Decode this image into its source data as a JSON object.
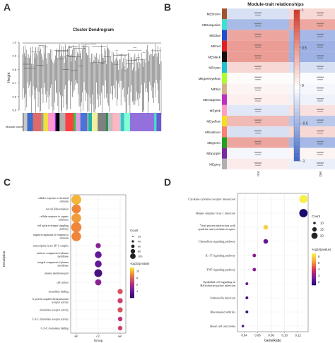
{
  "panels": {
    "a": "A",
    "b": "B",
    "c": "C",
    "d": "D"
  },
  "chart_data": [
    {
      "type": "dendrogram",
      "title": "Cluster Dendrogram",
      "ylabel": "Height",
      "yticks": [
        "1.0",
        "0.9",
        "0.8",
        "0.7",
        "0.6",
        "0.5"
      ],
      "ylim": [
        0.45,
        1.0
      ],
      "color_bar_label": "Module colors",
      "module_color_bar": [
        "#7b7b7b",
        "#c8c8c8",
        "#3a6fcf",
        "#e06a6a",
        "#9a9a9a",
        "#f0e040",
        "#ff99cc",
        "#8a2be2",
        "#000000",
        "#b0b0b0",
        "#ff4040",
        "#3cbf3c",
        "#e0a0e0",
        "#4b74d6",
        "#d2b48c",
        "#20b2aa",
        "#f0f0a0",
        "#808080",
        "#2e8b57",
        "#c0c0c0",
        "#ffb6c1",
        "#a0d8f0",
        "#40c0c0",
        "#7fffd4",
        "#9370db",
        "#40e0d0",
        "#6a5acd"
      ]
    },
    {
      "type": "heatmap",
      "title": "Module-trait relationships",
      "columns": [
        "Control",
        "T2DM"
      ],
      "rows": [
        "MEbrown",
        "MEturquoise",
        "MEblue",
        "MEred",
        "MEblack",
        "MEcyan",
        "MEgreenyellow",
        "MEtan",
        "MEmagenta",
        "MEpink",
        "MEyellow",
        "MEsalmon",
        "MEgreen",
        "MEpurple",
        "MEgrey"
      ],
      "row_colors": [
        "#a0522d",
        "#40e0d0",
        "#1f4fd0",
        "#e02020",
        "#111111",
        "#20c0d0",
        "#adff2f",
        "#d2b48c",
        "#c030c0",
        "#ff9ec4",
        "#f0e020",
        "#fa8072",
        "#20a020",
        "#7a2aa0",
        "#b0b0b0"
      ],
      "values": [
        [
          -0.2,
          0.2
        ],
        [
          -0.44,
          0.44
        ],
        [
          0.45,
          -0.45
        ],
        [
          0.5,
          -0.5
        ],
        [
          0.5,
          -0.5
        ],
        [
          0.2,
          -0.2
        ],
        [
          0.02,
          -0.02
        ],
        [
          0.05,
          -0.05
        ],
        [
          0.08,
          -0.08
        ],
        [
          -0.15,
          0.15
        ],
        [
          0.35,
          -0.35
        ],
        [
          -0.2,
          0.2
        ],
        [
          0.45,
          -0.45
        ],
        [
          -0.05,
          0.05
        ],
        [
          0.1,
          -0.1
        ]
      ],
      "scale_ticks": [
        "1",
        "0.5",
        "0",
        "-0.5",
        "-1"
      ],
      "clim": [
        -1,
        1
      ]
    },
    {
      "type": "scatter",
      "ylabel": "Description",
      "xlabel": "Group",
      "categories": [
        "BP",
        "CC",
        "MF"
      ],
      "terms": [
        {
          "label": "cellular response to chemical stimulus",
          "group": "BP",
          "count": 55,
          "log10p": 10
        },
        {
          "label": "fat cell differentiation",
          "group": "BP",
          "count": 45,
          "log10p": 9
        },
        {
          "label": "cellular response to organic substance",
          "group": "BP",
          "count": 50,
          "log10p": 9.5
        },
        {
          "label": "cell surface receptor signaling pathway",
          "group": "BP",
          "count": 60,
          "log10p": 9
        },
        {
          "label": "negative regulation of response to stimulus",
          "group": "BP",
          "count": 50,
          "log10p": 9
        },
        {
          "label": "transcription factor AP-1 complex",
          "group": "CC",
          "count": 8,
          "log10p": 5
        },
        {
          "label": "intrinsic component of plasma membrane",
          "group": "CC",
          "count": 20,
          "log10p": 4
        },
        {
          "label": "integral component of plasma membrane",
          "group": "CC",
          "count": 20,
          "log10p": 4
        },
        {
          "label": "plasma membrane part",
          "group": "CC",
          "count": 30,
          "log10p": 3
        },
        {
          "label": "cell surface",
          "group": "CC",
          "count": 15,
          "log10p": 5
        },
        {
          "label": "chemokine binding",
          "group": "MF",
          "count": 8,
          "log10p": 7.5
        },
        {
          "label": "G protein-coupled chemoattractant receptor activity",
          "group": "MF",
          "count": 8,
          "log10p": 7
        },
        {
          "label": "chemokine receptor activity",
          "group": "MF",
          "count": 8,
          "log10p": 7.5
        },
        {
          "label": "C-X-C chemokine receptor activity",
          "group": "MF",
          "count": 5,
          "log10p": 6.5
        },
        {
          "label": "C-X-C chemokine binding",
          "group": "MF",
          "count": 5,
          "log10p": 7
        }
      ],
      "legend": {
        "size_title": "Count",
        "size_values": [
          20,
          40,
          60,
          80,
          100
        ],
        "color_title": "-log10(p value)",
        "color_ticks": [
          "4",
          "6",
          "8",
          "10"
        ],
        "clim": [
          2,
          11
        ]
      }
    },
    {
      "type": "scatter",
      "xlabel": "GeneRatio",
      "xticks": [
        "0.04",
        "0.06",
        "0.08",
        "0.10",
        "0.12"
      ],
      "xlim": [
        0.03,
        0.135
      ],
      "terms": [
        {
          "label": "Cytokine-cytokine receptor interaction",
          "x": 0.128,
          "count": 23,
          "log10p": 6.5
        },
        {
          "label": "Herpes simplex virus 1 infection",
          "x": 0.128,
          "count": 23,
          "log10p": 1.5
        },
        {
          "label": "Viral protein interaction with cytokine and cytokine receptor",
          "x": 0.072,
          "count": 13,
          "log10p": 6
        },
        {
          "label": "Chemokine signaling pathway",
          "x": 0.072,
          "count": 13,
          "log10p": 2.5
        },
        {
          "label": "IL-17 signaling pathway",
          "x": 0.055,
          "count": 10,
          "log10p": 3
        },
        {
          "label": "TNF signaling pathway",
          "x": 0.055,
          "count": 10,
          "log10p": 3
        },
        {
          "label": "Epithelial cell signaling in Helicobacter pylori infection",
          "x": 0.044,
          "count": 8,
          "log10p": 2.5
        },
        {
          "label": "Salmonella infection",
          "x": 0.044,
          "count": 8,
          "log10p": 2
        },
        {
          "label": "Rheumatoid arthritis",
          "x": 0.044,
          "count": 8,
          "log10p": 2
        },
        {
          "label": "Basal cell carcinoma",
          "x": 0.038,
          "count": 7,
          "log10p": 2
        }
      ],
      "legend": {
        "size_title": "Count",
        "size_values": [
          10,
          15,
          20
        ],
        "color_title": "-log10(pvalue)",
        "color_ticks": [
          "2",
          "3",
          "4",
          "5",
          "6"
        ],
        "clim": [
          1.5,
          6.5
        ]
      }
    }
  ]
}
